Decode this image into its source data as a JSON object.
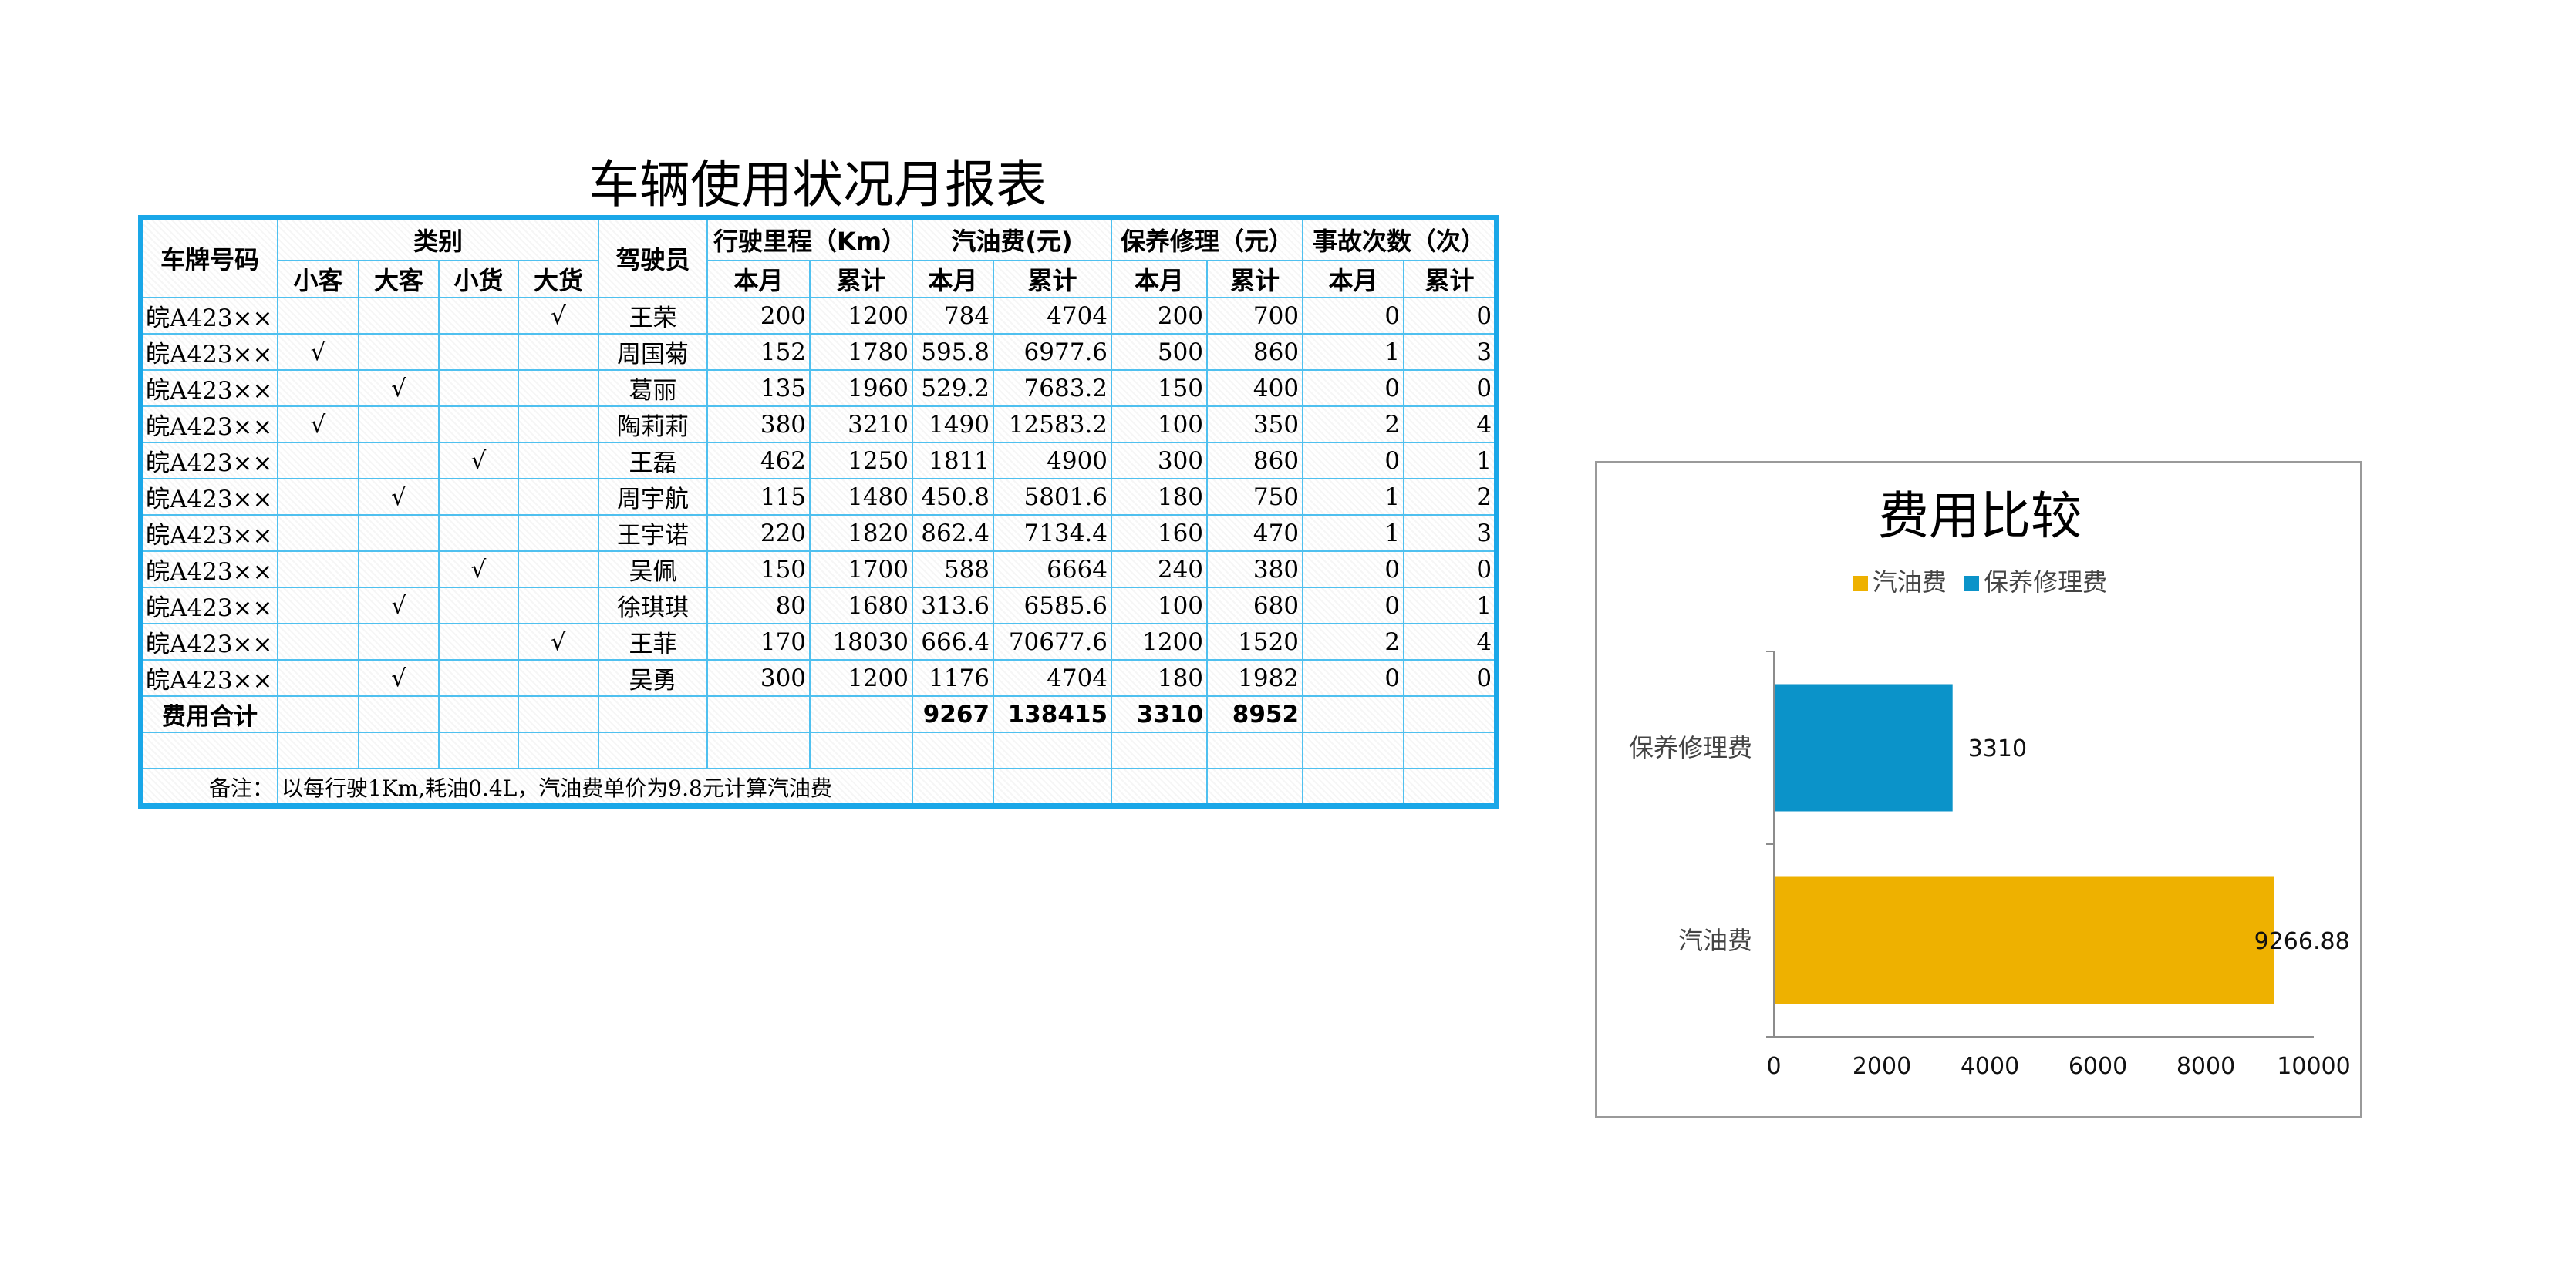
{
  "title": "车辆使用状况月报表",
  "headers": {
    "plate": "车牌号码",
    "category": "类别",
    "cat_small_passenger": "小客",
    "cat_large_passenger": "大客",
    "cat_small_cargo": "小货",
    "cat_large_cargo": "大货",
    "driver": "驾驶员",
    "mileage": "行驶里程（Km）",
    "fuel": "汽油费(元)",
    "maintenance": "保养修理（元）",
    "accidents": "事故次数（次）",
    "month": "本月",
    "cumulative": "累计"
  },
  "rows": [
    {
      "plate": "皖A423××",
      "c1": "",
      "c2": "",
      "c3": "",
      "c4": "√",
      "driver": "王荣",
      "m_month": "200",
      "m_cum": "1200",
      "f_month": "784",
      "f_cum": "4704",
      "r_month": "200",
      "r_cum": "700",
      "a_month": "0",
      "a_cum": "0"
    },
    {
      "plate": "皖A423××",
      "c1": "√",
      "c2": "",
      "c3": "",
      "c4": "",
      "driver": "周国菊",
      "m_month": "152",
      "m_cum": "1780",
      "f_month": "595.8",
      "f_cum": "6977.6",
      "r_month": "500",
      "r_cum": "860",
      "a_month": "1",
      "a_cum": "3"
    },
    {
      "plate": "皖A423××",
      "c1": "",
      "c2": "√",
      "c3": "",
      "c4": "",
      "driver": "葛丽",
      "m_month": "135",
      "m_cum": "1960",
      "f_month": "529.2",
      "f_cum": "7683.2",
      "r_month": "150",
      "r_cum": "400",
      "a_month": "0",
      "a_cum": "0"
    },
    {
      "plate": "皖A423××",
      "c1": "√",
      "c2": "",
      "c3": "",
      "c4": "",
      "driver": "陶莉莉",
      "m_month": "380",
      "m_cum": "3210",
      "f_month": "1490",
      "f_cum": "12583.2",
      "r_month": "100",
      "r_cum": "350",
      "a_month": "2",
      "a_cum": "4"
    },
    {
      "plate": "皖A423××",
      "c1": "",
      "c2": "",
      "c3": "√",
      "c4": "",
      "driver": "王磊",
      "m_month": "462",
      "m_cum": "1250",
      "f_month": "1811",
      "f_cum": "4900",
      "r_month": "300",
      "r_cum": "860",
      "a_month": "0",
      "a_cum": "1"
    },
    {
      "plate": "皖A423××",
      "c1": "",
      "c2": "√",
      "c3": "",
      "c4": "",
      "driver": "周宇航",
      "m_month": "115",
      "m_cum": "1480",
      "f_month": "450.8",
      "f_cum": "5801.6",
      "r_month": "180",
      "r_cum": "750",
      "a_month": "1",
      "a_cum": "2"
    },
    {
      "plate": "皖A423××",
      "c1": "",
      "c2": "",
      "c3": "",
      "c4": "",
      "driver": "王宇诺",
      "m_month": "220",
      "m_cum": "1820",
      "f_month": "862.4",
      "f_cum": "7134.4",
      "r_month": "160",
      "r_cum": "470",
      "a_month": "1",
      "a_cum": "3"
    },
    {
      "plate": "皖A423××",
      "c1": "",
      "c2": "",
      "c3": "√",
      "c4": "",
      "driver": "吴佩",
      "m_month": "150",
      "m_cum": "1700",
      "f_month": "588",
      "f_cum": "6664",
      "r_month": "240",
      "r_cum": "380",
      "a_month": "0",
      "a_cum": "0"
    },
    {
      "plate": "皖A423××",
      "c1": "",
      "c2": "√",
      "c3": "",
      "c4": "",
      "driver": "徐琪琪",
      "m_month": "80",
      "m_cum": "1680",
      "f_month": "313.6",
      "f_cum": "6585.6",
      "r_month": "100",
      "r_cum": "680",
      "a_month": "0",
      "a_cum": "1"
    },
    {
      "plate": "皖A423××",
      "c1": "",
      "c2": "",
      "c3": "",
      "c4": "√",
      "driver": "王菲",
      "m_month": "170",
      "m_cum": "18030",
      "f_month": "666.4",
      "f_cum": "70677.6",
      "r_month": "1200",
      "r_cum": "1520",
      "a_month": "2",
      "a_cum": "4"
    },
    {
      "plate": "皖A423××",
      "c1": "",
      "c2": "√",
      "c3": "",
      "c4": "",
      "driver": "吴勇",
      "m_month": "300",
      "m_cum": "1200",
      "f_month": "1176",
      "f_cum": "4704",
      "r_month": "180",
      "r_cum": "1982",
      "a_month": "0",
      "a_cum": "0"
    }
  ],
  "totals": {
    "label": "费用合计",
    "f_month": "9267",
    "f_cum": "138415",
    "r_month": "3310",
    "r_cum": "8952"
  },
  "note": {
    "label": "备注：",
    "text": "以每行驶1Km,耗油0.4L，汽油费单价为9.8元计算汽油费"
  },
  "chart_data": {
    "type": "bar",
    "orientation": "horizontal",
    "title": "费用比较",
    "categories": [
      "保养修理费",
      "汽油费"
    ],
    "values": [
      3310,
      9266.88
    ],
    "value_labels": [
      "3310",
      "9266.88"
    ],
    "colors": [
      "#0b93c9",
      "#eeb100"
    ],
    "legend": [
      "汽油费",
      "保养修理费"
    ],
    "legend_colors": [
      "#eeb100",
      "#0b93c9"
    ],
    "legend_position": "top",
    "xlim": [
      0,
      10000
    ],
    "xticks": [
      "0",
      "2000",
      "4000",
      "6000",
      "8000",
      "10000"
    ],
    "grid": false
  }
}
